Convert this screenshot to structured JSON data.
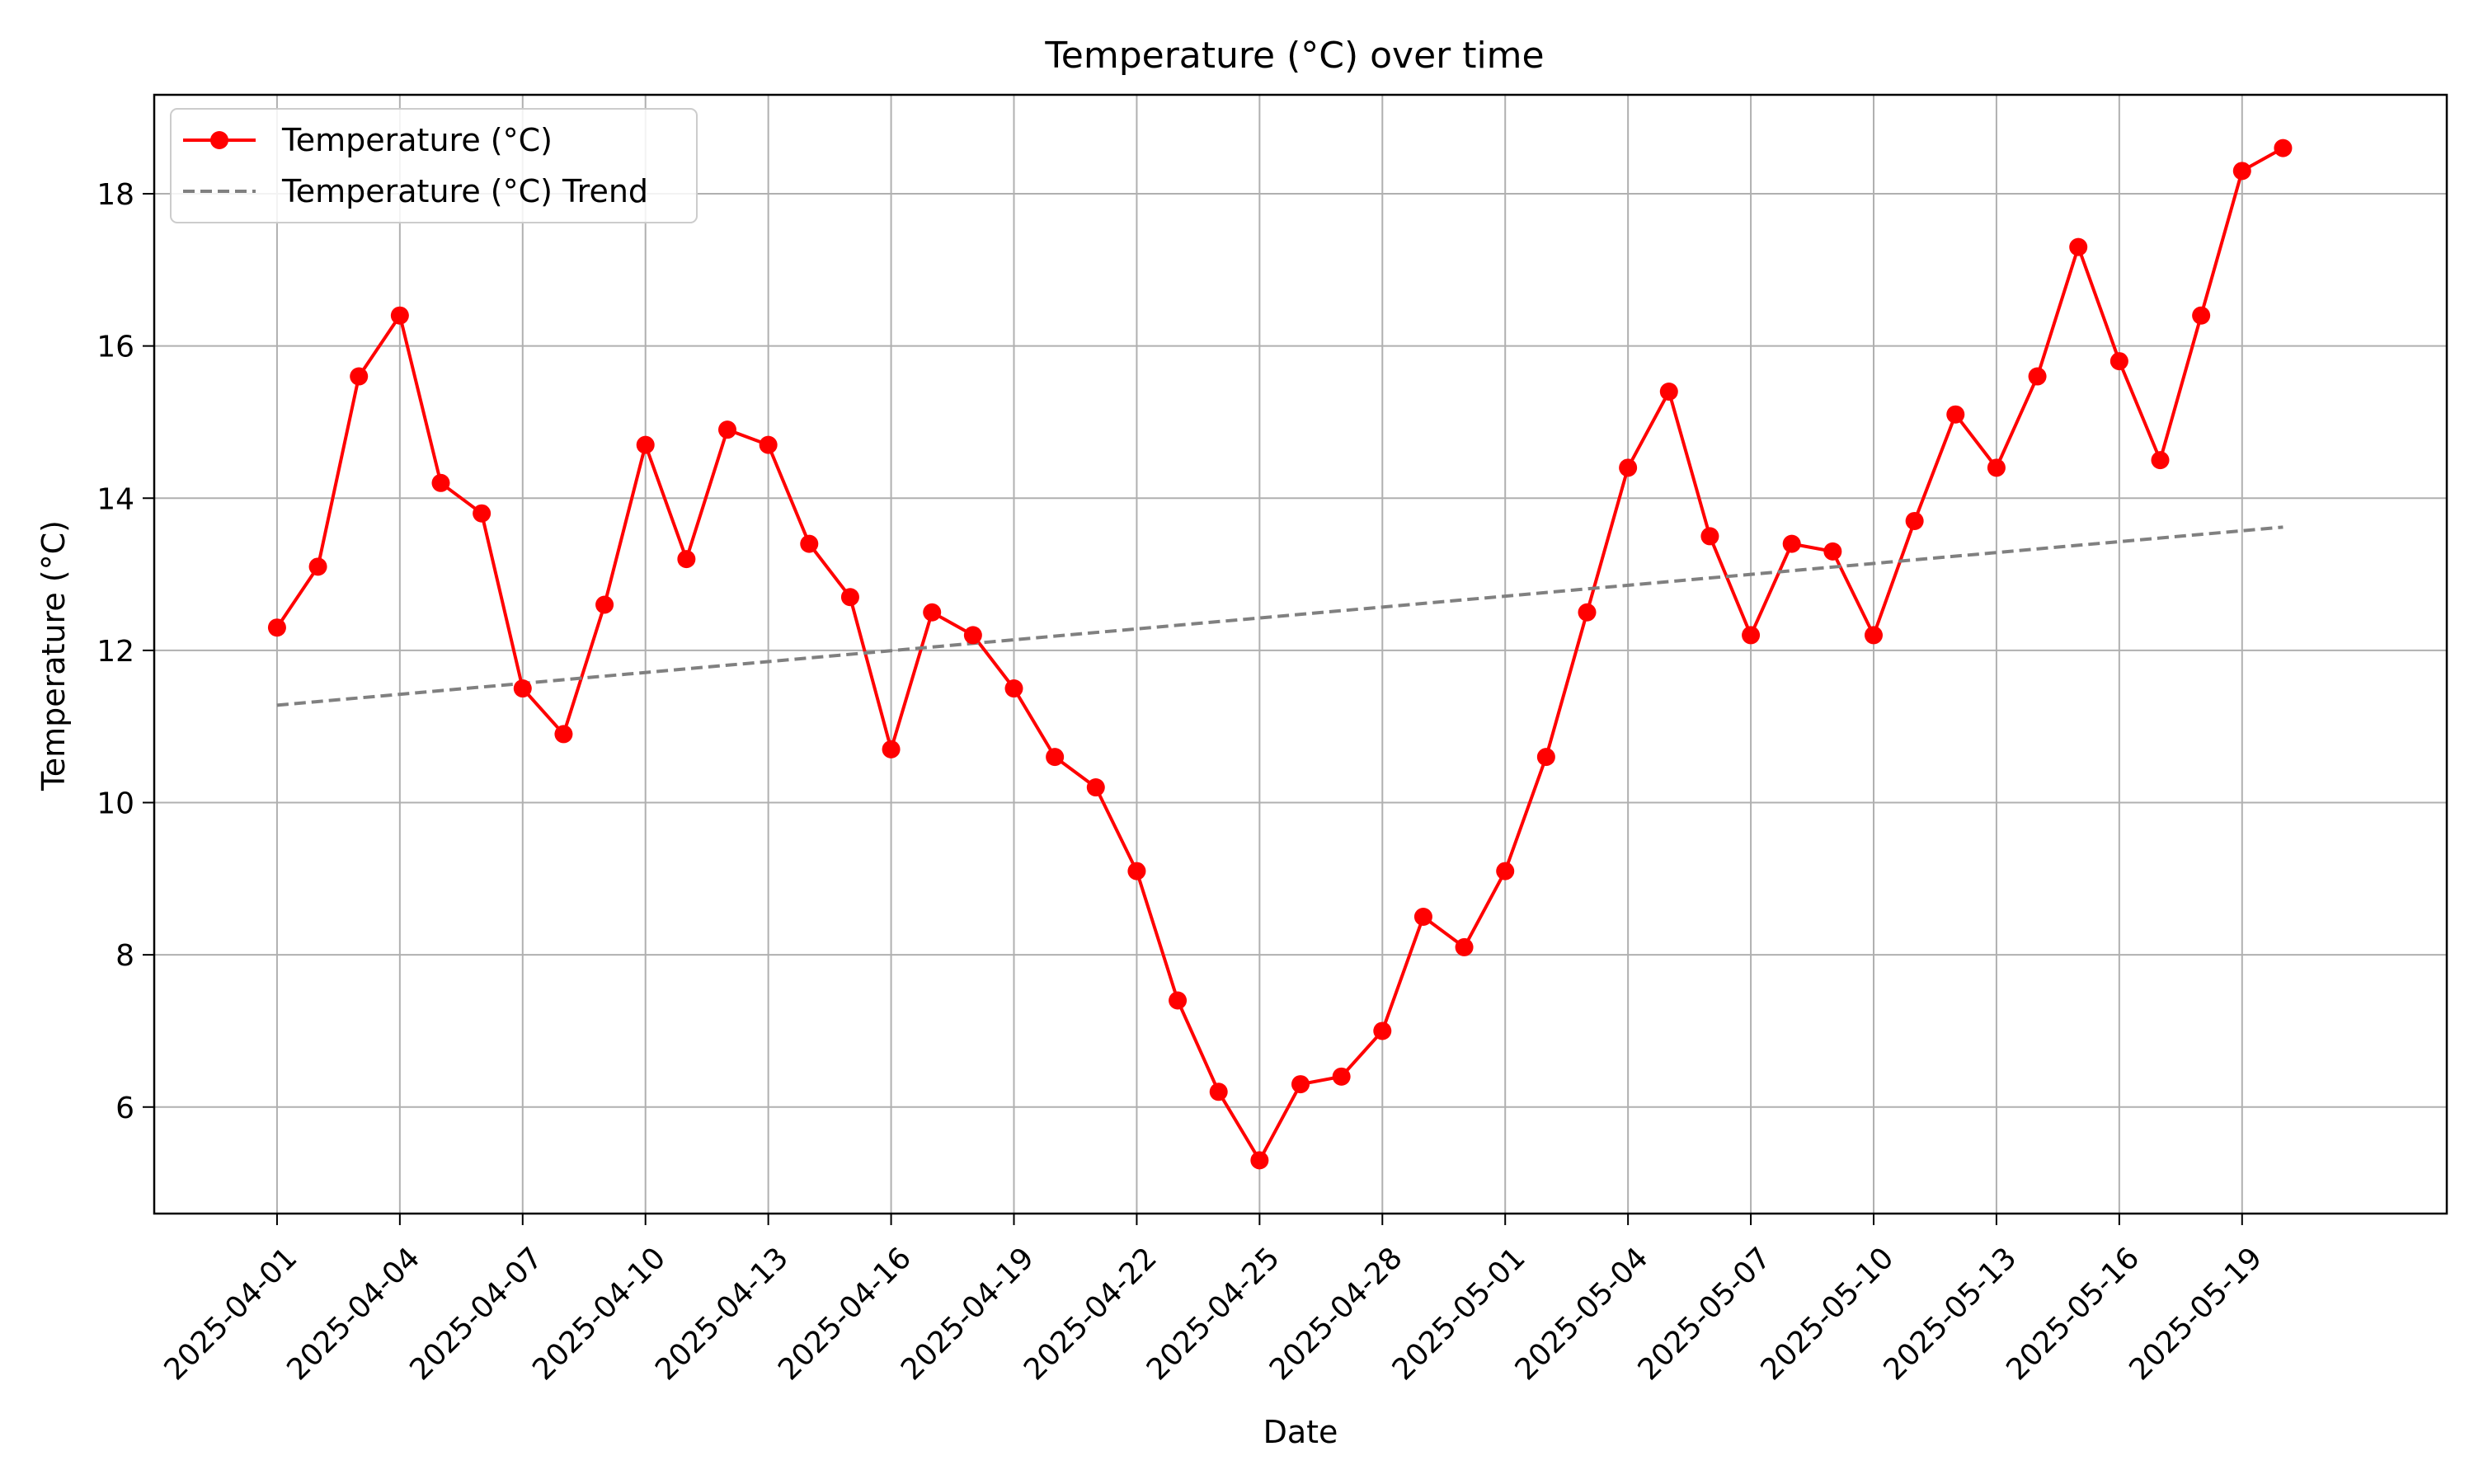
{
  "chart_data": {
    "type": "line",
    "title": "Temperature (°C) over time",
    "xlabel": "Date",
    "ylabel": "Temperature (°C)",
    "ylim": [
      4.6,
      19.3
    ],
    "xlim": [
      "2025-03-29",
      "2025-05-24"
    ],
    "grid": true,
    "legend_position": "top-left",
    "x_ticks": [
      "2025-04-01",
      "2025-04-04",
      "2025-04-07",
      "2025-04-10",
      "2025-04-13",
      "2025-04-16",
      "2025-04-19",
      "2025-04-22",
      "2025-04-25",
      "2025-04-28",
      "2025-05-01",
      "2025-05-04",
      "2025-05-07",
      "2025-05-10",
      "2025-05-13",
      "2025-05-16",
      "2025-05-19"
    ],
    "y_ticks": [
      6,
      8,
      10,
      12,
      14,
      16,
      18
    ],
    "x": [
      "2025-04-01",
      "2025-04-02",
      "2025-04-03",
      "2025-04-04",
      "2025-04-05",
      "2025-04-06",
      "2025-04-07",
      "2025-04-08",
      "2025-04-09",
      "2025-04-10",
      "2025-04-11",
      "2025-04-12",
      "2025-04-13",
      "2025-04-14",
      "2025-04-15",
      "2025-04-16",
      "2025-04-17",
      "2025-04-18",
      "2025-04-19",
      "2025-04-20",
      "2025-04-21",
      "2025-04-22",
      "2025-04-23",
      "2025-04-24",
      "2025-04-25",
      "2025-04-26",
      "2025-04-27",
      "2025-04-28",
      "2025-04-29",
      "2025-04-30",
      "2025-05-01",
      "2025-05-02",
      "2025-05-03",
      "2025-05-04",
      "2025-05-05",
      "2025-05-06",
      "2025-05-07",
      "2025-05-08",
      "2025-05-09",
      "2025-05-10",
      "2025-05-11",
      "2025-05-12",
      "2025-05-13",
      "2025-05-14",
      "2025-05-15",
      "2025-05-16",
      "2025-05-17",
      "2025-05-18",
      "2025-05-19",
      "2025-05-20"
    ],
    "series": [
      {
        "name": "Temperature (°C)",
        "color": "#ff0000",
        "style": "solid-with-markers",
        "values": [
          12.3,
          13.1,
          15.6,
          16.4,
          14.2,
          13.8,
          11.5,
          10.9,
          12.6,
          14.7,
          13.2,
          14.9,
          14.7,
          13.4,
          12.7,
          10.7,
          12.5,
          12.2,
          11.5,
          10.6,
          10.2,
          9.1,
          7.4,
          6.2,
          5.3,
          6.3,
          6.4,
          7.0,
          8.5,
          8.1,
          9.1,
          10.6,
          12.5,
          14.4,
          15.4,
          13.5,
          12.2,
          13.4,
          13.3,
          12.2,
          13.7,
          15.1,
          14.4,
          15.6,
          17.3,
          15.8,
          14.5,
          16.4,
          18.3,
          18.6
        ]
      },
      {
        "name": "Temperature (°C) Trend",
        "color": "#808080",
        "style": "dashed",
        "x": [
          "2025-04-01",
          "2025-05-20"
        ],
        "values": [
          11.28,
          13.62
        ]
      }
    ]
  }
}
